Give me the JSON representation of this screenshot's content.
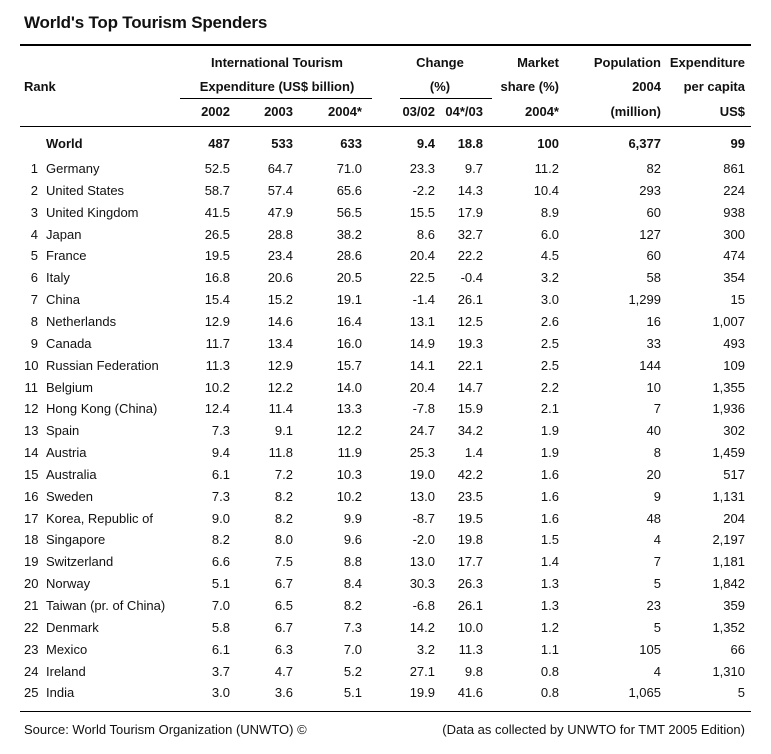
{
  "title": "World's Top Tourism Spenders",
  "headers": {
    "rank": "Rank",
    "intl_line1": "International Tourism",
    "intl_line2": "Expenditure (US$ billion)",
    "y2002": "2002",
    "y2003": "2003",
    "y2004": "2004*",
    "change_line1": "Change",
    "change_line2": "(%)",
    "ch0302": "03/02",
    "ch0403": "04*/03",
    "market_line1": "Market",
    "market_line2": "share (%)",
    "market_line3": "2004*",
    "pop_line1": "Population",
    "pop_line2": "2004",
    "pop_line3": "(million)",
    "exp_line1": "Expenditure",
    "exp_line2": "per capita",
    "exp_line3": "US$"
  },
  "world": {
    "name": "World",
    "y2002": "487",
    "y2003": "533",
    "y2004": "633",
    "ch0302": "9.4",
    "ch0403": "18.8",
    "share": "100",
    "pop": "6,377",
    "percap": "99"
  },
  "rows": [
    {
      "rank": "1",
      "name": "Germany",
      "y2002": "52.5",
      "y2003": "64.7",
      "y2004": "71.0",
      "ch0302": "23.3",
      "ch0403": "9.7",
      "share": "11.2",
      "pop": "82",
      "percap": "861"
    },
    {
      "rank": "2",
      "name": "United States",
      "y2002": "58.7",
      "y2003": "57.4",
      "y2004": "65.6",
      "ch0302": "-2.2",
      "ch0403": "14.3",
      "share": "10.4",
      "pop": "293",
      "percap": "224"
    },
    {
      "rank": "3",
      "name": "United Kingdom",
      "y2002": "41.5",
      "y2003": "47.9",
      "y2004": "56.5",
      "ch0302": "15.5",
      "ch0403": "17.9",
      "share": "8.9",
      "pop": "60",
      "percap": "938"
    },
    {
      "rank": "4",
      "name": "Japan",
      "y2002": "26.5",
      "y2003": "28.8",
      "y2004": "38.2",
      "ch0302": "8.6",
      "ch0403": "32.7",
      "share": "6.0",
      "pop": "127",
      "percap": "300"
    },
    {
      "rank": "5",
      "name": "France",
      "y2002": "19.5",
      "y2003": "23.4",
      "y2004": "28.6",
      "ch0302": "20.4",
      "ch0403": "22.2",
      "share": "4.5",
      "pop": "60",
      "percap": "474"
    },
    {
      "rank": "6",
      "name": "Italy",
      "y2002": "16.8",
      "y2003": "20.6",
      "y2004": "20.5",
      "ch0302": "22.5",
      "ch0403": "-0.4",
      "share": "3.2",
      "pop": "58",
      "percap": "354"
    },
    {
      "rank": "7",
      "name": "China",
      "y2002": "15.4",
      "y2003": "15.2",
      "y2004": "19.1",
      "ch0302": "-1.4",
      "ch0403": "26.1",
      "share": "3.0",
      "pop": "1,299",
      "percap": "15"
    },
    {
      "rank": "8",
      "name": "Netherlands",
      "y2002": "12.9",
      "y2003": "14.6",
      "y2004": "16.4",
      "ch0302": "13.1",
      "ch0403": "12.5",
      "share": "2.6",
      "pop": "16",
      "percap": "1,007"
    },
    {
      "rank": "9",
      "name": "Canada",
      "y2002": "11.7",
      "y2003": "13.4",
      "y2004": "16.0",
      "ch0302": "14.9",
      "ch0403": "19.3",
      "share": "2.5",
      "pop": "33",
      "percap": "493"
    },
    {
      "rank": "10",
      "name": "Russian Federation",
      "y2002": "11.3",
      "y2003": "12.9",
      "y2004": "15.7",
      "ch0302": "14.1",
      "ch0403": "22.1",
      "share": "2.5",
      "pop": "144",
      "percap": "109"
    },
    {
      "rank": "11",
      "name": "Belgium",
      "y2002": "10.2",
      "y2003": "12.2",
      "y2004": "14.0",
      "ch0302": "20.4",
      "ch0403": "14.7",
      "share": "2.2",
      "pop": "10",
      "percap": "1,355"
    },
    {
      "rank": "12",
      "name": "Hong Kong (China)",
      "y2002": "12.4",
      "y2003": "11.4",
      "y2004": "13.3",
      "ch0302": "-7.8",
      "ch0403": "15.9",
      "share": "2.1",
      "pop": "7",
      "percap": "1,936"
    },
    {
      "rank": "13",
      "name": "Spain",
      "y2002": "7.3",
      "y2003": "9.1",
      "y2004": "12.2",
      "ch0302": "24.7",
      "ch0403": "34.2",
      "share": "1.9",
      "pop": "40",
      "percap": "302"
    },
    {
      "rank": "14",
      "name": "Austria",
      "y2002": "9.4",
      "y2003": "11.8",
      "y2004": "11.9",
      "ch0302": "25.3",
      "ch0403": "1.4",
      "share": "1.9",
      "pop": "8",
      "percap": "1,459"
    },
    {
      "rank": "15",
      "name": "Australia",
      "y2002": "6.1",
      "y2003": "7.2",
      "y2004": "10.3",
      "ch0302": "19.0",
      "ch0403": "42.2",
      "share": "1.6",
      "pop": "20",
      "percap": "517"
    },
    {
      "rank": "16",
      "name": "Sweden",
      "y2002": "7.3",
      "y2003": "8.2",
      "y2004": "10.2",
      "ch0302": "13.0",
      "ch0403": "23.5",
      "share": "1.6",
      "pop": "9",
      "percap": "1,131"
    },
    {
      "rank": "17",
      "name": "Korea, Republic of",
      "y2002": "9.0",
      "y2003": "8.2",
      "y2004": "9.9",
      "ch0302": "-8.7",
      "ch0403": "19.5",
      "share": "1.6",
      "pop": "48",
      "percap": "204"
    },
    {
      "rank": "18",
      "name": "Singapore",
      "y2002": "8.2",
      "y2003": "8.0",
      "y2004": "9.6",
      "ch0302": "-2.0",
      "ch0403": "19.8",
      "share": "1.5",
      "pop": "4",
      "percap": "2,197"
    },
    {
      "rank": "19",
      "name": "Switzerland",
      "y2002": "6.6",
      "y2003": "7.5",
      "y2004": "8.8",
      "ch0302": "13.0",
      "ch0403": "17.7",
      "share": "1.4",
      "pop": "7",
      "percap": "1,181"
    },
    {
      "rank": "20",
      "name": "Norway",
      "y2002": "5.1",
      "y2003": "6.7",
      "y2004": "8.4",
      "ch0302": "30.3",
      "ch0403": "26.3",
      "share": "1.3",
      "pop": "5",
      "percap": "1,842"
    },
    {
      "rank": "21",
      "name": "Taiwan (pr. of China)",
      "y2002": "7.0",
      "y2003": "6.5",
      "y2004": "8.2",
      "ch0302": "-6.8",
      "ch0403": "26.1",
      "share": "1.3",
      "pop": "23",
      "percap": "359"
    },
    {
      "rank": "22",
      "name": "Denmark",
      "y2002": "5.8",
      "y2003": "6.7",
      "y2004": "7.3",
      "ch0302": "14.2",
      "ch0403": "10.0",
      "share": "1.2",
      "pop": "5",
      "percap": "1,352"
    },
    {
      "rank": "23",
      "name": "Mexico",
      "y2002": "6.1",
      "y2003": "6.3",
      "y2004": "7.0",
      "ch0302": "3.2",
      "ch0403": "11.3",
      "share": "1.1",
      "pop": "105",
      "percap": "66"
    },
    {
      "rank": "24",
      "name": "Ireland",
      "y2002": "3.7",
      "y2003": "4.7",
      "y2004": "5.2",
      "ch0302": "27.1",
      "ch0403": "9.8",
      "share": "0.8",
      "pop": "4",
      "percap": "1,310"
    },
    {
      "rank": "25",
      "name": "India",
      "y2002": "3.0",
      "y2003": "3.6",
      "y2004": "5.1",
      "ch0302": "19.9",
      "ch0403": "41.6",
      "share": "0.8",
      "pop": "1,065",
      "percap": "5"
    }
  ],
  "footer": {
    "source": "Source: World Tourism Organization (UNWTO) ©",
    "note": "(Data as collected by UNWTO for TMT 2005 Edition)"
  }
}
